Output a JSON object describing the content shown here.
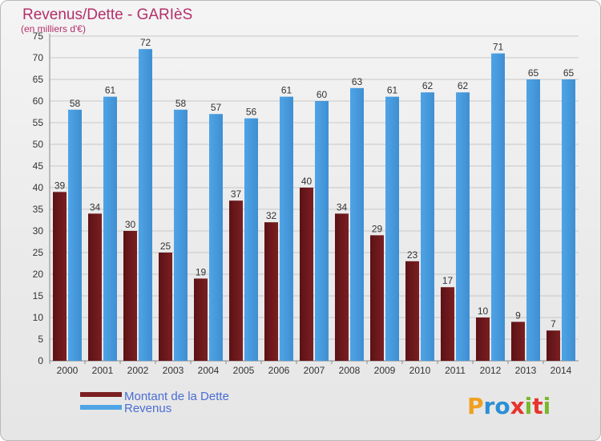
{
  "chart_data": {
    "type": "bar",
    "title": "Revenus/Dette - GARIèS",
    "subtitle": "(en milliers d'€)",
    "categories": [
      "2000",
      "2001",
      "2002",
      "2003",
      "2004",
      "2005",
      "2006",
      "2007",
      "2008",
      "2009",
      "2010",
      "2011",
      "2012",
      "2013",
      "2014"
    ],
    "series": [
      {
        "name": "Montant de la Dette",
        "color": "#7a1f22",
        "values": [
          39,
          34,
          30,
          25,
          19,
          37,
          32,
          40,
          34,
          29,
          23,
          17,
          10,
          9,
          7
        ]
      },
      {
        "name": "Revenus",
        "color": "#4ea4e6",
        "values": [
          58,
          61,
          72,
          58,
          57,
          56,
          61,
          60,
          63,
          61,
          62,
          62,
          71,
          65,
          65
        ]
      }
    ],
    "ylim": [
      0,
      75
    ],
    "yticks": [
      0,
      5,
      10,
      15,
      20,
      25,
      30,
      35,
      40,
      45,
      50,
      55,
      60,
      65,
      70,
      75
    ],
    "grid": true,
    "legend_position": "bottom-left"
  },
  "logo": {
    "text": "Proxiti",
    "colors": [
      "#f0a020",
      "#2b8fd6",
      "#e8332e",
      "#78b82a"
    ]
  }
}
